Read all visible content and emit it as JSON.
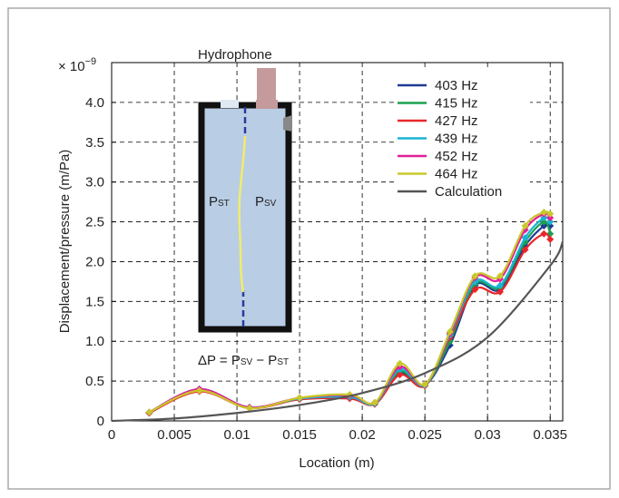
{
  "chart_data": {
    "type": "line",
    "x_label": "Location (m)",
    "y_label": "Displacement/pressure (m/Pa)",
    "y_multiplier": {
      "base": "× 10",
      "exponent": "−9"
    },
    "xlim": [
      0,
      0.036
    ],
    "ylim": [
      0,
      4.5
    ],
    "xticks": [
      0,
      0.005,
      0.01,
      0.015,
      0.02,
      0.025,
      0.03,
      0.035
    ],
    "yticks": [
      0,
      0.5,
      {
        "value": 1,
        "label": "1.0"
      },
      1.5,
      {
        "value": 2,
        "label": "2.0"
      },
      2.5,
      {
        "value": 3,
        "label": "3.0"
      },
      3.5,
      {
        "value": 4,
        "label": "4.0"
      }
    ],
    "grid": true,
    "legend": "upper right",
    "x": [
      0.003,
      0.007,
      0.011,
      0.015,
      0.019,
      0.021,
      0.023,
      0.025,
      0.027,
      0.029,
      0.031,
      0.033,
      0.0345,
      0.035
    ],
    "series": [
      {
        "name": "403 Hz",
        "color": "#1f3a93",
        "values": [
          0.1,
          0.38,
          0.17,
          0.28,
          0.3,
          0.22,
          0.6,
          0.45,
          0.95,
          1.7,
          1.65,
          2.2,
          2.45,
          2.45
        ]
      },
      {
        "name": "415 Hz",
        "color": "#1aa050",
        "values": [
          0.1,
          0.38,
          0.17,
          0.28,
          0.3,
          0.22,
          0.62,
          0.45,
          1.0,
          1.72,
          1.68,
          2.25,
          2.5,
          2.35
        ]
      },
      {
        "name": "427 Hz",
        "color": "#e8262a",
        "values": [
          0.1,
          0.37,
          0.16,
          0.27,
          0.28,
          0.21,
          0.58,
          0.44,
          1.05,
          1.65,
          1.62,
          2.15,
          2.35,
          2.28
        ]
      },
      {
        "name": "439 Hz",
        "color": "#19b4d4",
        "values": [
          0.11,
          0.4,
          0.17,
          0.28,
          0.3,
          0.22,
          0.65,
          0.45,
          1.08,
          1.75,
          1.7,
          2.3,
          2.55,
          2.5
        ]
      },
      {
        "name": "452 Hz",
        "color": "#e0209a",
        "values": [
          0.11,
          0.4,
          0.17,
          0.29,
          0.32,
          0.23,
          0.68,
          0.46,
          1.1,
          1.8,
          1.78,
          2.4,
          2.6,
          2.55
        ]
      },
      {
        "name": "464 Hz",
        "color": "#c8c82a",
        "values": [
          0.11,
          0.38,
          0.16,
          0.29,
          0.33,
          0.23,
          0.72,
          0.46,
          1.12,
          1.82,
          1.82,
          2.45,
          2.62,
          2.6
        ]
      },
      {
        "name": "Calculation",
        "color": "#555555",
        "markers": false,
        "x": [
          0,
          0.005,
          0.01,
          0.015,
          0.02,
          0.025,
          0.03,
          0.035,
          0.036
        ],
        "values": [
          0,
          0.03,
          0.1,
          0.2,
          0.35,
          0.6,
          1.05,
          1.95,
          2.25
        ]
      }
    ],
    "inset": {
      "hydrophone": "Hydrophone",
      "left_label": {
        "main": "P",
        "sub": "ST"
      },
      "right_label": {
        "main": "P",
        "sub": "SV"
      },
      "equation": [
        {
          "text": "ΔP = P"
        },
        {
          "sub": "SV"
        },
        {
          "text": " − P"
        },
        {
          "sub": "ST"
        }
      ]
    }
  }
}
